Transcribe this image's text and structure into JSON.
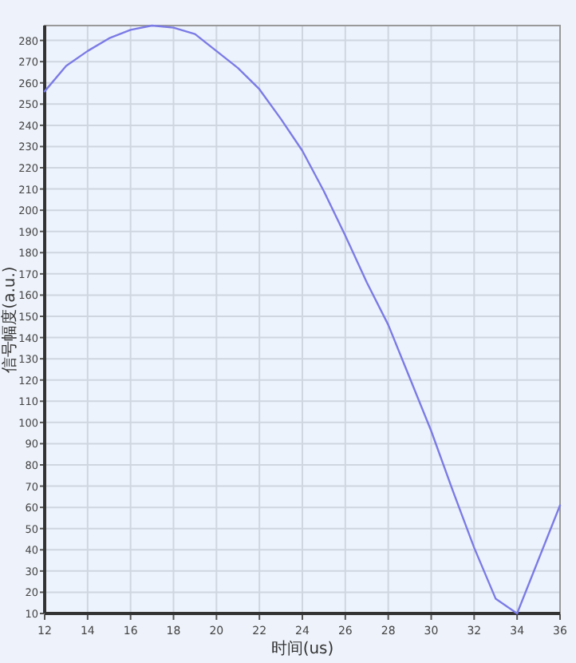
{
  "chart_data": {
    "type": "line",
    "xlabel": "时间(us)",
    "ylabel": "信号幅度(a.u.)",
    "x": [
      12,
      13,
      14,
      15,
      16,
      17,
      18,
      19,
      20,
      21,
      22,
      23,
      24,
      25,
      26,
      27,
      28,
      29,
      30,
      31,
      32,
      33,
      34,
      36
    ],
    "series": [
      {
        "color": "#7b7be6",
        "values": [
          256,
          268,
          275,
          281,
          285,
          287,
          286,
          283,
          275,
          267,
          257,
          243,
          228,
          209,
          188,
          166,
          146,
          121,
          96,
          68,
          41,
          17,
          10,
          61
        ]
      }
    ],
    "xlim": [
      12,
      36
    ],
    "ylim": [
      10,
      287
    ],
    "xticks": [
      12,
      14,
      16,
      18,
      20,
      22,
      24,
      26,
      28,
      30,
      32,
      34,
      36
    ],
    "yticks": [
      10,
      20,
      30,
      40,
      50,
      60,
      70,
      80,
      90,
      100,
      110,
      120,
      130,
      140,
      150,
      160,
      170,
      180,
      190,
      200,
      210,
      220,
      230,
      240,
      250,
      260,
      270,
      280
    ],
    "grid": true
  }
}
